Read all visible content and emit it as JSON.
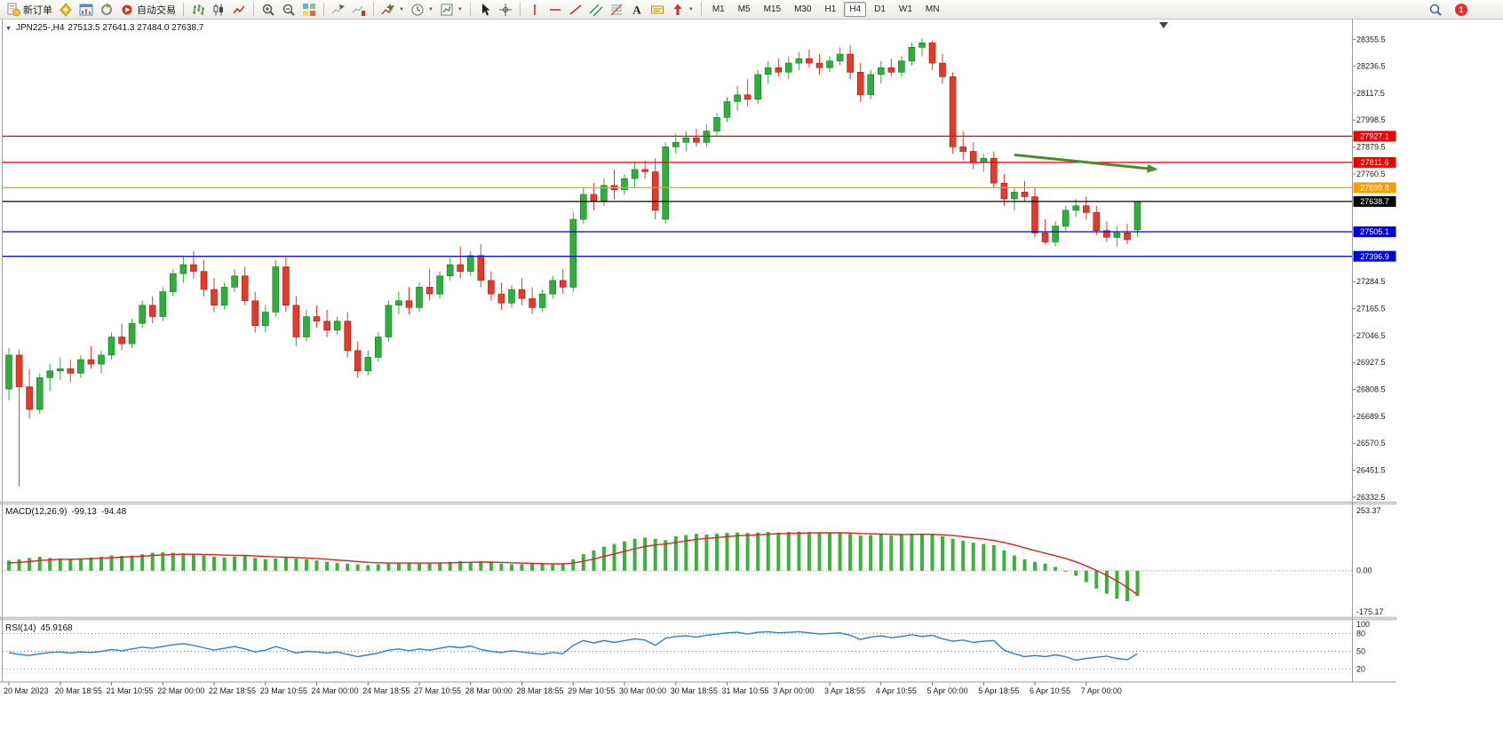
{
  "toolbar": {
    "groups": [
      {
        "items": [
          {
            "name": "new-order-button",
            "icon": "new-order",
            "label": "新订单"
          },
          {
            "name": "navigator-button",
            "icon": "navigator"
          },
          {
            "name": "chart-window-button",
            "icon": "chart-window"
          },
          {
            "name": "refresh-button",
            "icon": "refresh"
          },
          {
            "name": "auto-trading-button",
            "icon": "autotrade",
            "label": "自动交易"
          }
        ]
      },
      {
        "items": [
          {
            "name": "bar-chart-button",
            "icon": "bars"
          },
          {
            "name": "candlestick-chart-button",
            "icon": "candles"
          },
          {
            "name": "line-chart-button",
            "icon": "line-chart"
          }
        ]
      },
      {
        "items": [
          {
            "name": "zoom-in-button",
            "icon": "zoom-in"
          },
          {
            "name": "zoom-out-button",
            "icon": "zoom-out"
          },
          {
            "name": "tile-windows-button",
            "icon": "tile-windows"
          }
        ]
      },
      {
        "items": [
          {
            "name": "auto-scroll-button",
            "icon": "auto-scroll"
          },
          {
            "name": "chart-shift-button",
            "icon": "chart-shift"
          }
        ]
      },
      {
        "items": [
          {
            "name": "indicators-button",
            "icon": "indicators",
            "caret": true
          },
          {
            "name": "periods-button",
            "icon": "clock",
            "caret": true
          },
          {
            "name": "templates-button",
            "icon": "template",
            "caret": true
          }
        ]
      },
      {
        "items": [
          {
            "name": "cursor-button",
            "icon": "cursor"
          },
          {
            "name": "crosshair-button",
            "icon": "crosshair"
          }
        ]
      },
      {
        "items": [
          {
            "name": "vertical-line-button",
            "icon": "vline"
          },
          {
            "name": "horizontal-line-button",
            "icon": "hline"
          },
          {
            "name": "trendline-button",
            "icon": "trendline"
          },
          {
            "name": "channel-button",
            "icon": "channel"
          },
          {
            "name": "fibonacci-button",
            "icon": "fibonacci"
          },
          {
            "name": "text-button",
            "icon": "text"
          },
          {
            "name": "text-label-button",
            "icon": "label"
          },
          {
            "name": "arrows-button",
            "icon": "arrows",
            "caret": true
          }
        ]
      }
    ],
    "timeframes": [
      {
        "label": "M1"
      },
      {
        "label": "M5"
      },
      {
        "label": "M15"
      },
      {
        "label": "M30"
      },
      {
        "label": "H1"
      },
      {
        "label": "H4",
        "active": true
      },
      {
        "label": "D1"
      },
      {
        "label": "W1"
      },
      {
        "label": "MN"
      }
    ],
    "active_timeframe": "H4",
    "right": {
      "notification_count": "1"
    }
  },
  "chart": {
    "expander": "▼",
    "symbol_period": "JPN225-,H4",
    "ohlc_line": "27513.5 27641.3 27484.0 27638.7"
  },
  "chart_data": {
    "type": "candlestick",
    "title": "JPN225-,H4",
    "current_ohlc": {
      "open": 27513.5,
      "high": 27641.3,
      "low": 27484.0,
      "close": 27638.7
    },
    "colors": {
      "up": "#2fae3d",
      "down": "#e23b2c",
      "up_border": "#157a20",
      "down_border": "#a01e14"
    },
    "price_axis": {
      "min": 26320,
      "max": 28435,
      "ticks": [
        28355.5,
        28236.5,
        28117.5,
        27998.5,
        27879.5,
        27760.5,
        27284.5,
        27165.5,
        27046.5,
        26927.5,
        26808.5,
        26689.5,
        26570.5,
        26451.5,
        26332.5
      ]
    },
    "levels": [
      {
        "name": "resistance-upper",
        "price": 27927.1,
        "color": "#f00000"
      },
      {
        "name": "resistance-lower",
        "price": 27811.6,
        "color": "#f00000"
      },
      {
        "name": "pivot-orange",
        "price": 27699.8,
        "color": "#ff9c00"
      },
      {
        "name": "current-price",
        "price": 27638.7,
        "color": "#000000"
      },
      {
        "name": "support-upper",
        "price": 27505.1,
        "color": "#0000e0"
      },
      {
        "name": "support-lower",
        "price": 27396.9,
        "color": "#0000e0"
      }
    ],
    "annotation_arrow": {
      "from_index": 98,
      "price_from": 27845,
      "to_index": 112,
      "price_to": 27780,
      "color": "#4c8b2b"
    },
    "label_every_n_candles": 5,
    "time_labels": [
      "20 Mar 2023",
      "20 Mar 18:55",
      "21 Mar 10:55",
      "22 Mar 00:00",
      "22 Mar 18:55",
      "23 Mar 10:55",
      "24 Mar 00:00",
      "24 Mar 18:55",
      "27 Mar 10:55",
      "28 Mar 00:00",
      "28 Mar 18:55",
      "29 Mar 10:55",
      "30 Mar 00:00",
      "30 Mar 18:55",
      "31 Mar 10:55",
      "3 Apr 00:00",
      "3 Apr 18:55",
      "4 Apr 10:55",
      "5 Apr 00:00",
      "5 Apr 18:55",
      "6 Apr 10:55",
      "7 Apr 00:00"
    ],
    "candles": [
      [
        26810,
        26990,
        26760,
        26960
      ],
      [
        26960,
        26985,
        26380,
        26820
      ],
      [
        26820,
        26900,
        26680,
        26720
      ],
      [
        26720,
        26880,
        26700,
        26860
      ],
      [
        26860,
        26920,
        26800,
        26890
      ],
      [
        26890,
        26950,
        26850,
        26900
      ],
      [
        26900,
        26940,
        26840,
        26880
      ],
      [
        26880,
        26960,
        26860,
        26940
      ],
      [
        26940,
        27000,
        26900,
        26920
      ],
      [
        26920,
        26980,
        26880,
        26960
      ],
      [
        26960,
        27060,
        26940,
        27040
      ],
      [
        27040,
        27100,
        26980,
        27010
      ],
      [
        27010,
        27120,
        26990,
        27100
      ],
      [
        27100,
        27200,
        27080,
        27180
      ],
      [
        27180,
        27220,
        27100,
        27130
      ],
      [
        27130,
        27260,
        27110,
        27240
      ],
      [
        27240,
        27340,
        27220,
        27320
      ],
      [
        27320,
        27400,
        27280,
        27360
      ],
      [
        27360,
        27420,
        27300,
        27330
      ],
      [
        27330,
        27380,
        27220,
        27250
      ],
      [
        27250,
        27300,
        27150,
        27180
      ],
      [
        27180,
        27280,
        27160,
        27260
      ],
      [
        27260,
        27340,
        27240,
        27310
      ],
      [
        27310,
        27350,
        27180,
        27200
      ],
      [
        27200,
        27240,
        27060,
        27090
      ],
      [
        27090,
        27180,
        27060,
        27150
      ],
      [
        27150,
        27380,
        27130,
        27350
      ],
      [
        27350,
        27400,
        27150,
        27180
      ],
      [
        27180,
        27220,
        27000,
        27040
      ],
      [
        27040,
        27160,
        27020,
        27130
      ],
      [
        27130,
        27180,
        27080,
        27110
      ],
      [
        27110,
        27160,
        27040,
        27070
      ],
      [
        27070,
        27130,
        27050,
        27110
      ],
      [
        27110,
        27150,
        26950,
        26980
      ],
      [
        26980,
        27020,
        26860,
        26890
      ],
      [
        26890,
        26980,
        26870,
        26950
      ],
      [
        26950,
        27060,
        26930,
        27040
      ],
      [
        27040,
        27200,
        27020,
        27180
      ],
      [
        27180,
        27240,
        27140,
        27200
      ],
      [
        27200,
        27260,
        27140,
        27170
      ],
      [
        27170,
        27280,
        27150,
        27260
      ],
      [
        27260,
        27340,
        27200,
        27230
      ],
      [
        27230,
        27330,
        27210,
        27310
      ],
      [
        27310,
        27390,
        27290,
        27360
      ],
      [
        27360,
        27440,
        27300,
        27330
      ],
      [
        27330,
        27420,
        27310,
        27400
      ],
      [
        27400,
        27450,
        27260,
        27290
      ],
      [
        27290,
        27330,
        27200,
        27230
      ],
      [
        27230,
        27280,
        27160,
        27190
      ],
      [
        27190,
        27270,
        27170,
        27250
      ],
      [
        27250,
        27300,
        27180,
        27210
      ],
      [
        27210,
        27260,
        27140,
        27170
      ],
      [
        27170,
        27250,
        27150,
        27230
      ],
      [
        27230,
        27310,
        27210,
        27290
      ],
      [
        27290,
        27340,
        27230,
        27260
      ],
      [
        27260,
        27590,
        27240,
        27560
      ],
      [
        27560,
        27700,
        27540,
        27670
      ],
      [
        27670,
        27720,
        27600,
        27640
      ],
      [
        27640,
        27740,
        27620,
        27710
      ],
      [
        27710,
        27780,
        27650,
        27690
      ],
      [
        27690,
        27760,
        27670,
        27740
      ],
      [
        27740,
        27810,
        27700,
        27780
      ],
      [
        27780,
        27820,
        27740,
        27770
      ],
      [
        27770,
        27830,
        27560,
        27600
      ],
      [
        27560,
        27900,
        27540,
        27880
      ],
      [
        27880,
        27940,
        27850,
        27900
      ],
      [
        27900,
        27950,
        27860,
        27920
      ],
      [
        27920,
        27960,
        27880,
        27900
      ],
      [
        27900,
        27980,
        27880,
        27950
      ],
      [
        27950,
        28030,
        27930,
        28010
      ],
      [
        28010,
        28100,
        27990,
        28080
      ],
      [
        28080,
        28150,
        28040,
        28110
      ],
      [
        28110,
        28180,
        28060,
        28090
      ],
      [
        28090,
        28220,
        28070,
        28200
      ],
      [
        28200,
        28260,
        28160,
        28230
      ],
      [
        28230,
        28270,
        28190,
        28210
      ],
      [
        28210,
        28280,
        28180,
        28250
      ],
      [
        28250,
        28300,
        28220,
        28270
      ],
      [
        28270,
        28310,
        28230,
        28250
      ],
      [
        28250,
        28290,
        28200,
        28230
      ],
      [
        28230,
        28280,
        28210,
        28260
      ],
      [
        28260,
        28320,
        28240,
        28290
      ],
      [
        28290,
        28330,
        28180,
        28210
      ],
      [
        28210,
        28250,
        28080,
        28110
      ],
      [
        28110,
        28220,
        28090,
        28200
      ],
      [
        28200,
        28260,
        28160,
        28230
      ],
      [
        28230,
        28270,
        28190,
        28210
      ],
      [
        28210,
        28280,
        28190,
        28260
      ],
      [
        28260,
        28340,
        28240,
        28320
      ],
      [
        28320,
        28360,
        28280,
        28340
      ],
      [
        28340,
        28350,
        28220,
        28250
      ],
      [
        28250,
        28290,
        28160,
        28190
      ],
      [
        28190,
        28210,
        27850,
        27880
      ],
      [
        27880,
        27950,
        27820,
        27860
      ],
      [
        27860,
        27900,
        27780,
        27810
      ],
      [
        27810,
        27850,
        27770,
        27830
      ],
      [
        27830,
        27860,
        27700,
        27720
      ],
      [
        27720,
        27760,
        27620,
        27650
      ],
      [
        27650,
        27700,
        27600,
        27680
      ],
      [
        27680,
        27730,
        27640,
        27660
      ],
      [
        27660,
        27700,
        27480,
        27500
      ],
      [
        27500,
        27560,
        27450,
        27460
      ],
      [
        27460,
        27550,
        27440,
        27530
      ],
      [
        27530,
        27620,
        27510,
        27600
      ],
      [
        27600,
        27650,
        27570,
        27620
      ],
      [
        27620,
        27660,
        27560,
        27590
      ],
      [
        27590,
        27620,
        27490,
        27510
      ],
      [
        27510,
        27550,
        27460,
        27480
      ],
      [
        27480,
        27530,
        27440,
        27500
      ],
      [
        27500,
        27540,
        27450,
        27470
      ],
      [
        27513.5,
        27641.3,
        27484.0,
        27638.7
      ]
    ],
    "macd": {
      "label": "MACD(12,26,9)",
      "value": -99.13,
      "signal_value": -94.48,
      "axis_max": 253.37,
      "axis_min": -175.17,
      "axis_ticks": [
        {
          "label": "253.37",
          "value": 253.37
        },
        {
          "label": "0.00",
          "value": 0
        },
        {
          "label": "-175.17",
          "value": -175.17
        }
      ],
      "colors": {
        "histogram": "#3cb13c",
        "signal": "#e02020"
      },
      "histogram": [
        40,
        45,
        50,
        55,
        50,
        48,
        45,
        48,
        52,
        55,
        60,
        58,
        60,
        65,
        70,
        72,
        70,
        68,
        65,
        60,
        55,
        52,
        55,
        58,
        50,
        45,
        48,
        52,
        48,
        45,
        40,
        35,
        30,
        28,
        25,
        22,
        25,
        30,
        32,
        30,
        28,
        30,
        32,
        35,
        38,
        35,
        38,
        32,
        28,
        25,
        26,
        28,
        25,
        24,
        26,
        45,
        65,
        80,
        95,
        105,
        115,
        125,
        130,
        125,
        120,
        135,
        140,
        145,
        142,
        145,
        148,
        150,
        148,
        150,
        152,
        150,
        152,
        153,
        152,
        150,
        148,
        150,
        145,
        138,
        140,
        142,
        138,
        140,
        145,
        142,
        145,
        135,
        125,
        118,
        110,
        105,
        100,
        80,
        60,
        45,
        35,
        28,
        15,
        0,
        -20,
        -45,
        -70,
        -90,
        -110,
        -120,
        -99.13
      ],
      "signal": [
        30,
        33,
        36,
        40,
        43,
        45,
        45,
        46,
        47,
        49,
        51,
        53,
        55,
        57,
        60,
        62,
        64,
        65,
        65,
        64,
        63,
        61,
        60,
        60,
        58,
        56,
        54,
        53,
        52,
        50,
        48,
        45,
        42,
        39,
        36,
        33,
        31,
        30,
        30,
        30,
        30,
        30,
        30,
        31,
        32,
        33,
        34,
        34,
        33,
        31,
        30,
        29,
        28,
        27,
        27,
        30,
        37,
        46,
        56,
        66,
        76,
        86,
        95,
        101,
        105,
        111,
        117,
        123,
        127,
        130,
        134,
        137,
        139,
        141,
        143,
        145,
        146,
        147,
        148,
        149,
        149,
        149,
        148,
        146,
        145,
        144,
        143,
        142,
        143,
        143,
        143,
        141,
        138,
        134,
        129,
        124,
        119,
        111,
        101,
        90,
        79,
        69,
        59,
        48,
        35,
        19,
        1,
        -18,
        -40,
        -65,
        -94.48
      ]
    },
    "rsi": {
      "label": "RSI(14)",
      "value": 45.9168,
      "color": "#3080c8",
      "levels": [
        80,
        50,
        20
      ],
      "axis_labels": [
        100,
        80,
        50,
        20
      ],
      "series": [
        48,
        45,
        43,
        46,
        48,
        49,
        47,
        49,
        48,
        50,
        53,
        51,
        54,
        57,
        55,
        58,
        61,
        63,
        60,
        56,
        52,
        55,
        58,
        54,
        49,
        52,
        58,
        53,
        47,
        50,
        49,
        47,
        49,
        45,
        41,
        44,
        47,
        52,
        54,
        51,
        54,
        52,
        55,
        58,
        56,
        59,
        53,
        50,
        48,
        51,
        49,
        47,
        45,
        48,
        46,
        60,
        68,
        64,
        68,
        65,
        68,
        71,
        69,
        60,
        72,
        75,
        76,
        74,
        77,
        79,
        81,
        82,
        79,
        82,
        83,
        81,
        82,
        83,
        81,
        79,
        80,
        81,
        77,
        70,
        74,
        76,
        73,
        75,
        78,
        75,
        77,
        71,
        67,
        69,
        65,
        67,
        68,
        52,
        46,
        41,
        43,
        41,
        44,
        41,
        35,
        38,
        40,
        42,
        38,
        36,
        45.9168
      ]
    }
  }
}
